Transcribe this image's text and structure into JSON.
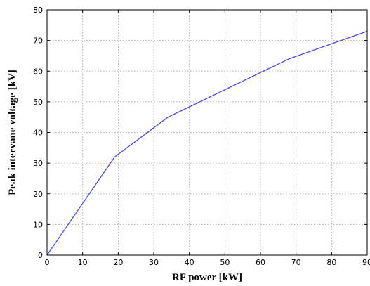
{
  "chart_data": {
    "type": "line",
    "title": "",
    "xlabel": "RF power [kW]",
    "ylabel": "Peak  intervane  voltage [kV]",
    "xlim": [
      0,
      90
    ],
    "ylim": [
      0,
      80
    ],
    "xticks": [
      "0",
      "10",
      "20",
      "30",
      "40",
      "50",
      "60",
      "70",
      "80",
      "90"
    ],
    "yticks": [
      "0",
      "10",
      "20",
      "30",
      "40",
      "50",
      "60",
      "70",
      "80"
    ],
    "grid": true,
    "legend": "none",
    "series": [
      {
        "color": "#4a4ae8",
        "x": [
          0,
          19,
          34,
          68,
          90
        ],
        "y": [
          0,
          32,
          45,
          64,
          73
        ]
      }
    ]
  }
}
